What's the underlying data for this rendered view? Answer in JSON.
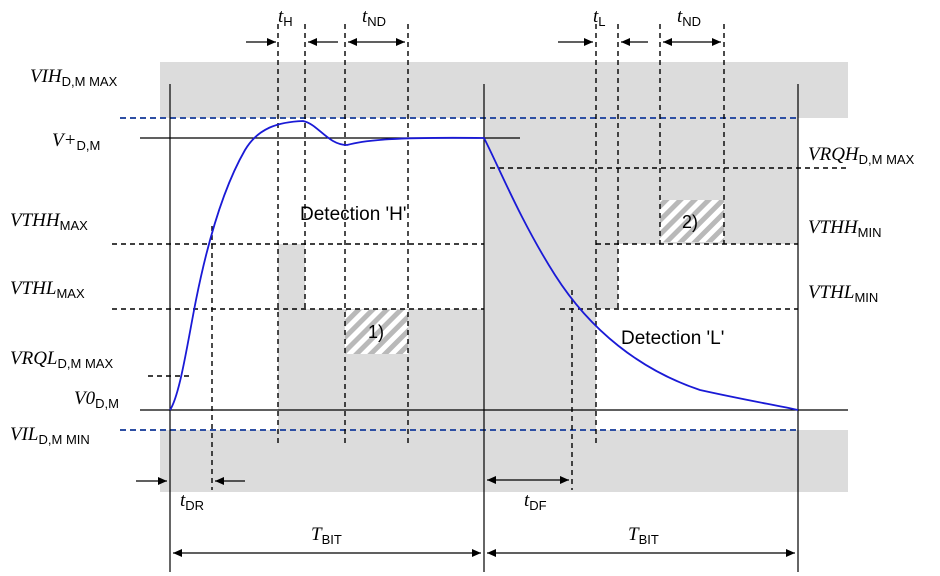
{
  "levels": {
    "vih": {
      "main": "VIH",
      "sub": "D,M MAX"
    },
    "vplus": {
      "main": "V+",
      "sub": "D,M"
    },
    "vrqh": {
      "main": "VRQH",
      "sub": "D,M MAX"
    },
    "vthh_max": {
      "main": "VTHH",
      "sub": "MAX"
    },
    "vthh_min": {
      "main": "VTHH",
      "sub": "MIN"
    },
    "vthl_max": {
      "main": "VTHL",
      "sub": "MAX"
    },
    "vthl_min": {
      "main": "VTHL",
      "sub": "MIN"
    },
    "vrql": {
      "main": "VRQL",
      "sub": "D,M MAX"
    },
    "v0": {
      "main": "V0",
      "sub": "D,M"
    },
    "vil": {
      "main": "VIL",
      "sub": "D,M MIN"
    }
  },
  "timings": {
    "t_h": {
      "main": "t",
      "sub": "H"
    },
    "t_nd_1": {
      "main": "t",
      "sub": "ND"
    },
    "t_l": {
      "main": "t",
      "sub": "L"
    },
    "t_nd_2": {
      "main": "t",
      "sub": "ND"
    },
    "t_dr": {
      "main": "t",
      "sub": "DR"
    },
    "t_df": {
      "main": "t",
      "sub": "DF"
    },
    "t_bit_1": {
      "main": "T",
      "sub": "BIT"
    },
    "t_bit_2": {
      "main": "T",
      "sub": "BIT"
    }
  },
  "regions": {
    "detection_h": "Detection 'H'",
    "detection_l": "Detection 'L'",
    "note_1": "1)",
    "note_2": "2)"
  },
  "colors": {
    "curve": "#1a1ad6",
    "limit_line": "#2e4fa3",
    "shade": "#dcdcdc"
  }
}
